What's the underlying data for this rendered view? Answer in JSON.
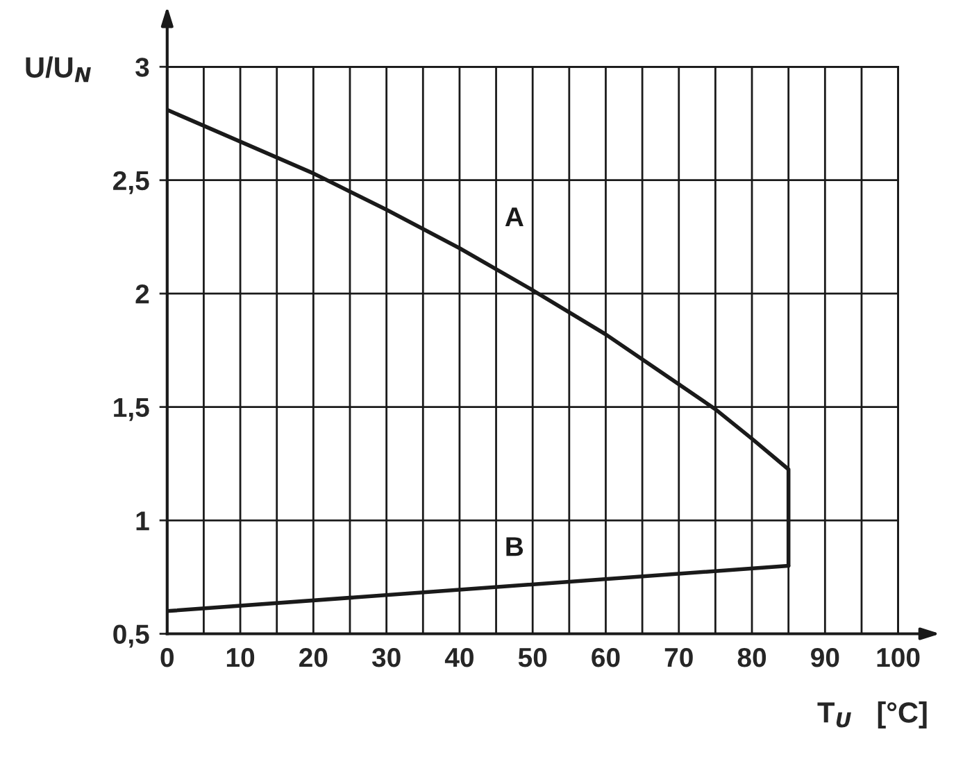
{
  "chart_data": {
    "type": "line",
    "xlabel": "T$_{U}$   [°C]",
    "ylabel": "U/U$_{N}$",
    "series": [
      {
        "name": "A",
        "color": "#1a1a1a",
        "x": [
          0,
          10,
          20,
          30,
          40,
          50,
          60,
          70,
          75,
          80,
          85,
          85,
          85
        ],
        "values": [
          2.81,
          2.67,
          2.53,
          2.37,
          2.2,
          2.015,
          1.82,
          1.6,
          1.49,
          1.36,
          1.225,
          1.0,
          0.8
        ]
      },
      {
        "name": "B",
        "color": "#1a1a1a",
        "x": [
          0,
          85
        ],
        "values": [
          0.6,
          0.8
        ]
      }
    ],
    "xlim": [
      0,
      100
    ],
    "ylim": [
      0.5,
      3
    ],
    "xticks": [
      0,
      {
        "value": 5,
        "label": null
      },
      10,
      {
        "value": 15,
        "label": null
      },
      20,
      {
        "value": 25,
        "label": null
      },
      30,
      {
        "value": 35,
        "label": null
      },
      40,
      {
        "value": 45,
        "label": null
      },
      50,
      {
        "value": 55,
        "label": null
      },
      60,
      {
        "value": 65,
        "label": null
      },
      70,
      {
        "value": 75,
        "label": null
      },
      80,
      {
        "value": 85,
        "label": null
      },
      90,
      {
        "value": 95,
        "label": null
      },
      100
    ],
    "yticks": [
      {
        "value": 0.5,
        "label": "0,5"
      },
      1,
      {
        "value": 1.5,
        "label": "1,5"
      },
      2,
      {
        "value": 2.5,
        "label": "2,5"
      },
      3
    ],
    "grid": true,
    "legend": false,
    "marker": "none",
    "line_style": "solid"
  }
}
